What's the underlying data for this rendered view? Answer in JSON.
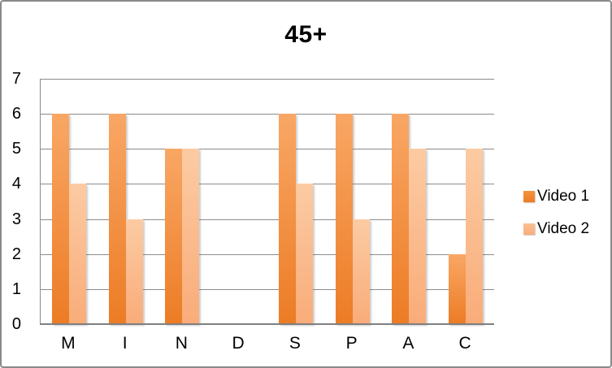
{
  "title": "45+",
  "chart_data": {
    "type": "bar",
    "title": "45+",
    "categories": [
      "M",
      "I",
      "N",
      "D",
      "S",
      "P",
      "A",
      "C"
    ],
    "series": [
      {
        "name": "Video 1",
        "values": [
          6,
          6,
          5,
          0,
          6,
          6,
          6,
          2
        ]
      },
      {
        "name": "Video 2",
        "values": [
          4,
          3,
          5,
          0,
          4,
          3,
          5,
          5
        ]
      }
    ],
    "xlabel": "",
    "ylabel": "",
    "ylim": [
      0,
      7
    ],
    "yticks": [
      0,
      1,
      2,
      3,
      4,
      5,
      6,
      7
    ],
    "grid": "horizontal",
    "legend_position": "right"
  },
  "legend": {
    "items": [
      {
        "label": "Video 1"
      },
      {
        "label": "Video 2"
      }
    ]
  },
  "colors": {
    "series1_top": "#F9A765",
    "series1_bottom": "#EC7C25",
    "series2_top": "#FCCBA3",
    "series2_bottom": "#F9AC79",
    "legend_swatch1_top": "#F4933F",
    "legend_swatch1_bottom": "#EC7C25",
    "legend_swatch2_top": "#FBC096",
    "legend_swatch2_bottom": "#F9AC79",
    "gridline": "#8C8C8C",
    "axis": "#7F7F7F",
    "frame_border": "#8A8A8A",
    "text": "#000000",
    "background": "#FFFFFF"
  }
}
